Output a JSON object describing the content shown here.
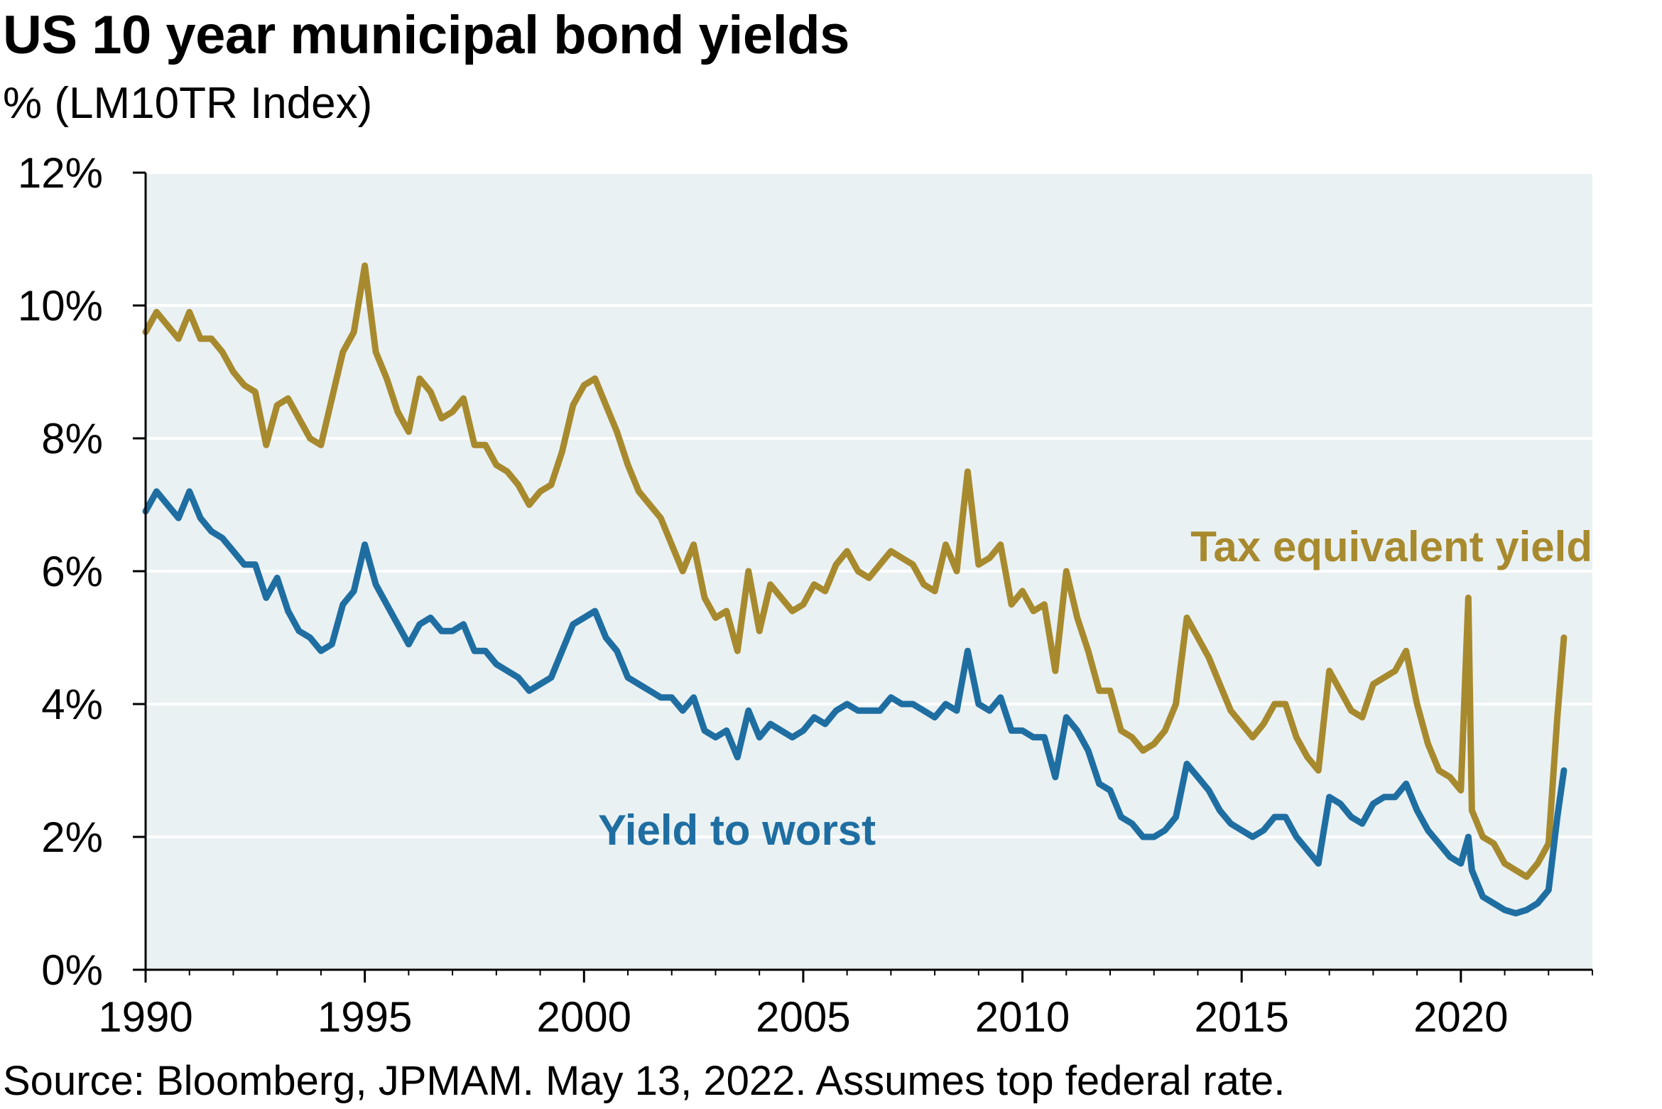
{
  "title": "US 10 year municipal bond yields",
  "subtitle": "% (LM10TR Index)",
  "source": "Source: Bloomberg, JPMAM. May 13, 2022. Assumes top federal rate.",
  "colors": {
    "plot_bg": "#e9f1f3",
    "gridline": "#ffffff",
    "axis": "#000000",
    "tax_equivalent": "#a88a2e",
    "yield_to_worst": "#1f6ea2"
  },
  "chart_data": {
    "type": "line",
    "title": "US 10 year municipal bond yields",
    "subtitle": "% (LM10TR Index)",
    "xlim": [
      1990,
      2023
    ],
    "ylim": [
      0,
      12
    ],
    "x_ticks": [
      1990,
      1995,
      2000,
      2005,
      2010,
      2015,
      2020
    ],
    "x_tick_labels": [
      "1990",
      "1995",
      "2000",
      "2005",
      "2010",
      "2015",
      "2020"
    ],
    "y_ticks": [
      0,
      2,
      4,
      6,
      8,
      10,
      12
    ],
    "y_tick_labels": [
      "0%",
      "2%",
      "4%",
      "6%",
      "8%",
      "10%",
      "12%"
    ],
    "grid": "horizontal",
    "series": [
      {
        "name": "Tax equivalent yield",
        "color": "#a88a2e",
        "x": [
          1990.0,
          1990.25,
          1990.5,
          1990.75,
          1991.0,
          1991.25,
          1991.5,
          1991.75,
          1992.0,
          1992.25,
          1992.5,
          1992.75,
          1993.0,
          1993.25,
          1993.5,
          1993.75,
          1994.0,
          1994.25,
          1994.5,
          1994.75,
          1995.0,
          1995.25,
          1995.5,
          1995.75,
          1996.0,
          1996.25,
          1996.5,
          1996.75,
          1997.0,
          1997.25,
          1997.5,
          1997.75,
          1998.0,
          1998.25,
          1998.5,
          1998.75,
          1999.0,
          1999.25,
          1999.5,
          1999.75,
          2000.0,
          2000.25,
          2000.5,
          2000.75,
          2001.0,
          2001.25,
          2001.5,
          2001.75,
          2002.0,
          2002.25,
          2002.5,
          2002.75,
          2003.0,
          2003.25,
          2003.5,
          2003.75,
          2004.0,
          2004.25,
          2004.5,
          2004.75,
          2005.0,
          2005.25,
          2005.5,
          2005.75,
          2006.0,
          2006.25,
          2006.5,
          2006.75,
          2007.0,
          2007.25,
          2007.5,
          2007.75,
          2008.0,
          2008.25,
          2008.5,
          2008.75,
          2009.0,
          2009.25,
          2009.5,
          2009.75,
          2010.0,
          2010.25,
          2010.5,
          2010.75,
          2011.0,
          2011.25,
          2011.5,
          2011.75,
          2012.0,
          2012.25,
          2012.5,
          2012.75,
          2013.0,
          2013.25,
          2013.5,
          2013.75,
          2014.0,
          2014.25,
          2014.5,
          2014.75,
          2015.0,
          2015.25,
          2015.5,
          2015.75,
          2016.0,
          2016.25,
          2016.5,
          2016.75,
          2017.0,
          2017.25,
          2017.5,
          2017.75,
          2018.0,
          2018.25,
          2018.5,
          2018.75,
          2019.0,
          2019.25,
          2019.5,
          2019.75,
          2020.0,
          2020.17,
          2020.25,
          2020.5,
          2020.75,
          2021.0,
          2021.25,
          2021.5,
          2021.75,
          2022.0,
          2022.2,
          2022.35
        ],
        "values": [
          9.6,
          9.9,
          9.7,
          9.5,
          9.9,
          9.5,
          9.5,
          9.3,
          9.0,
          8.8,
          8.7,
          7.9,
          8.5,
          8.6,
          8.3,
          8.0,
          7.9,
          8.6,
          9.3,
          9.6,
          10.6,
          9.3,
          8.9,
          8.4,
          8.1,
          8.9,
          8.7,
          8.3,
          8.4,
          8.6,
          7.9,
          7.9,
          7.6,
          7.5,
          7.3,
          7.0,
          7.2,
          7.3,
          7.8,
          8.5,
          8.8,
          8.9,
          8.5,
          8.1,
          7.6,
          7.2,
          7.0,
          6.8,
          6.4,
          6.0,
          6.4,
          5.6,
          5.3,
          5.4,
          4.8,
          6.0,
          5.1,
          5.8,
          5.6,
          5.4,
          5.5,
          5.8,
          5.7,
          6.1,
          6.3,
          6.0,
          5.9,
          6.1,
          6.3,
          6.2,
          6.1,
          5.8,
          5.7,
          6.4,
          6.0,
          7.5,
          6.1,
          6.2,
          6.4,
          5.5,
          5.7,
          5.4,
          5.5,
          4.5,
          6.0,
          5.3,
          4.8,
          4.2,
          4.2,
          3.6,
          3.5,
          3.3,
          3.4,
          3.6,
          4.0,
          5.3,
          5.0,
          4.7,
          4.3,
          3.9,
          3.7,
          3.5,
          3.7,
          4.0,
          4.0,
          3.5,
          3.2,
          3.0,
          4.5,
          4.2,
          3.9,
          3.8,
          4.3,
          4.4,
          4.5,
          4.8,
          4.0,
          3.4,
          3.0,
          2.9,
          2.7,
          5.6,
          2.4,
          2.0,
          1.9,
          1.6,
          1.5,
          1.4,
          1.6,
          1.9,
          3.8,
          5.0
        ]
      },
      {
        "name": "Yield to worst",
        "color": "#1f6ea2",
        "x": [
          1990.0,
          1990.25,
          1990.5,
          1990.75,
          1991.0,
          1991.25,
          1991.5,
          1991.75,
          1992.0,
          1992.25,
          1992.5,
          1992.75,
          1993.0,
          1993.25,
          1993.5,
          1993.75,
          1994.0,
          1994.25,
          1994.5,
          1994.75,
          1995.0,
          1995.25,
          1995.5,
          1995.75,
          1996.0,
          1996.25,
          1996.5,
          1996.75,
          1997.0,
          1997.25,
          1997.5,
          1997.75,
          1998.0,
          1998.25,
          1998.5,
          1998.75,
          1999.0,
          1999.25,
          1999.5,
          1999.75,
          2000.0,
          2000.25,
          2000.5,
          2000.75,
          2001.0,
          2001.25,
          2001.5,
          2001.75,
          2002.0,
          2002.25,
          2002.5,
          2002.75,
          2003.0,
          2003.25,
          2003.5,
          2003.75,
          2004.0,
          2004.25,
          2004.5,
          2004.75,
          2005.0,
          2005.25,
          2005.5,
          2005.75,
          2006.0,
          2006.25,
          2006.5,
          2006.75,
          2007.0,
          2007.25,
          2007.5,
          2007.75,
          2008.0,
          2008.25,
          2008.5,
          2008.75,
          2009.0,
          2009.25,
          2009.5,
          2009.75,
          2010.0,
          2010.25,
          2010.5,
          2010.75,
          2011.0,
          2011.25,
          2011.5,
          2011.75,
          2012.0,
          2012.25,
          2012.5,
          2012.75,
          2013.0,
          2013.25,
          2013.5,
          2013.75,
          2014.0,
          2014.25,
          2014.5,
          2014.75,
          2015.0,
          2015.25,
          2015.5,
          2015.75,
          2016.0,
          2016.25,
          2016.5,
          2016.75,
          2017.0,
          2017.25,
          2017.5,
          2017.75,
          2018.0,
          2018.25,
          2018.5,
          2018.75,
          2019.0,
          2019.25,
          2019.5,
          2019.75,
          2020.0,
          2020.17,
          2020.25,
          2020.5,
          2020.75,
          2021.0,
          2021.25,
          2021.5,
          2021.75,
          2022.0,
          2022.2,
          2022.35
        ],
        "values": [
          6.9,
          7.2,
          7.0,
          6.8,
          7.2,
          6.8,
          6.6,
          6.5,
          6.3,
          6.1,
          6.1,
          5.6,
          5.9,
          5.4,
          5.1,
          5.0,
          4.8,
          4.9,
          5.5,
          5.7,
          6.4,
          5.8,
          5.5,
          5.2,
          4.9,
          5.2,
          5.3,
          5.1,
          5.1,
          5.2,
          4.8,
          4.8,
          4.6,
          4.5,
          4.4,
          4.2,
          4.3,
          4.4,
          4.8,
          5.2,
          5.3,
          5.4,
          5.0,
          4.8,
          4.4,
          4.3,
          4.2,
          4.1,
          4.1,
          3.9,
          4.1,
          3.6,
          3.5,
          3.6,
          3.2,
          3.9,
          3.5,
          3.7,
          3.6,
          3.5,
          3.6,
          3.8,
          3.7,
          3.9,
          4.0,
          3.9,
          3.9,
          3.9,
          4.1,
          4.0,
          4.0,
          3.9,
          3.8,
          4.0,
          3.9,
          4.8,
          4.0,
          3.9,
          4.1,
          3.6,
          3.6,
          3.5,
          3.5,
          2.9,
          3.8,
          3.6,
          3.3,
          2.8,
          2.7,
          2.3,
          2.2,
          2.0,
          2.0,
          2.1,
          2.3,
          3.1,
          2.9,
          2.7,
          2.4,
          2.2,
          2.1,
          2.0,
          2.1,
          2.3,
          2.3,
          2.0,
          1.8,
          1.6,
          2.6,
          2.5,
          2.3,
          2.2,
          2.5,
          2.6,
          2.6,
          2.8,
          2.4,
          2.1,
          1.9,
          1.7,
          1.6,
          2.0,
          1.5,
          1.1,
          1.0,
          0.9,
          0.85,
          0.9,
          1.0,
          1.2,
          2.3,
          3.0
        ]
      }
    ],
    "annotations": [
      {
        "text": "Tax equivalent yield",
        "series": "Tax equivalent yield"
      },
      {
        "text": "Yield to worst",
        "series": "Yield to worst"
      }
    ]
  }
}
